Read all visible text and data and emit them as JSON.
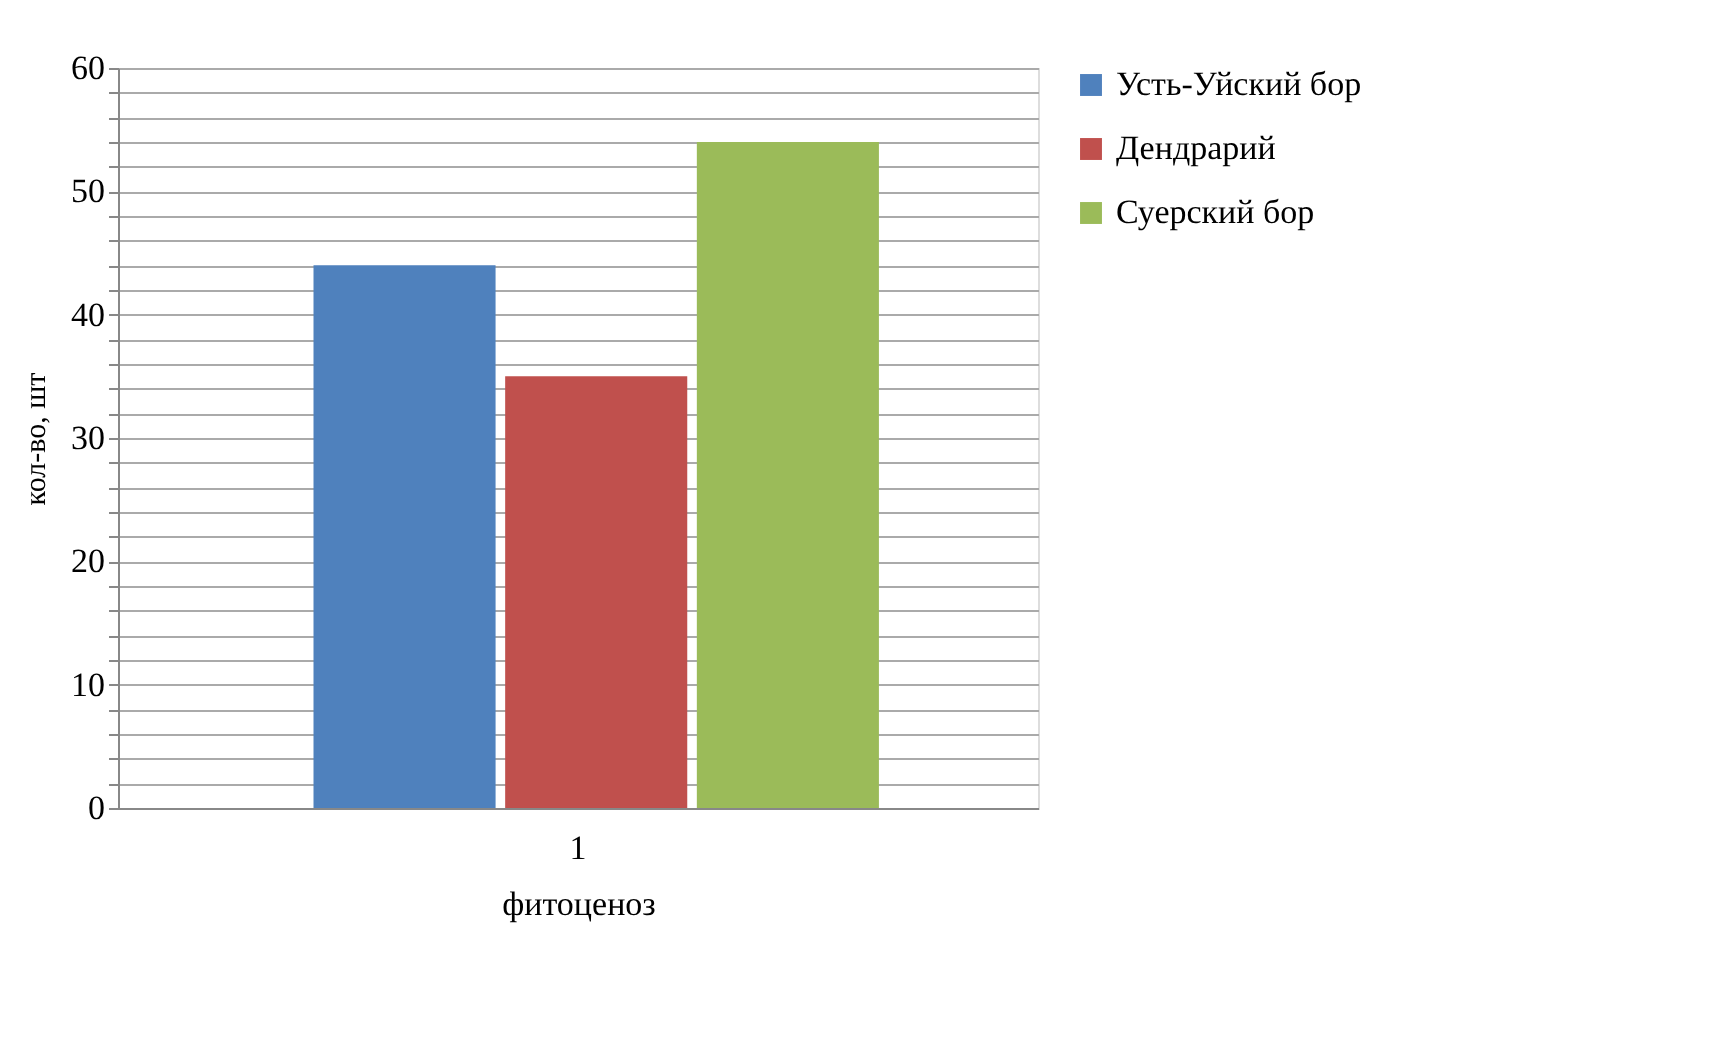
{
  "chart_data": {
    "type": "bar",
    "categories": [
      "1"
    ],
    "xlabel": "фитоценоз",
    "ylabel": "кол-во, шт",
    "series": [
      {
        "name": "Усть-Уйский бор",
        "color": "#4f81bd",
        "values": [
          44
        ]
      },
      {
        "name": "Дендрарий",
        "color": "#c0504d",
        "values": [
          35
        ]
      },
      {
        "name": "Суерский бор",
        "color": "#9bbb59",
        "values": [
          54
        ]
      }
    ],
    "ylim": [
      0,
      60
    ],
    "yticks": [
      0,
      {
        "value": 2,
        "label": null
      },
      {
        "value": 4,
        "label": null
      },
      {
        "value": 6,
        "label": null
      },
      {
        "value": 8,
        "label": null
      },
      10,
      {
        "value": 12,
        "label": null
      },
      {
        "value": 14,
        "label": null
      },
      {
        "value": 16,
        "label": null
      },
      {
        "value": 18,
        "label": null
      },
      20,
      {
        "value": 22,
        "label": null
      },
      {
        "value": 24,
        "label": null
      },
      {
        "value": 26,
        "label": null
      },
      {
        "value": 28,
        "label": null
      },
      30,
      {
        "value": 32,
        "label": null
      },
      {
        "value": 34,
        "label": null
      },
      {
        "value": 36,
        "label": null
      },
      {
        "value": 38,
        "label": null
      },
      40,
      {
        "value": 42,
        "label": null
      },
      {
        "value": 44,
        "label": null
      },
      {
        "value": 46,
        "label": null
      },
      {
        "value": 48,
        "label": null
      },
      50,
      {
        "value": 52,
        "label": null
      },
      {
        "value": 54,
        "label": null
      },
      {
        "value": 56,
        "label": null
      },
      {
        "value": 58,
        "label": null
      },
      60
    ],
    "grid": "y",
    "legend": "right"
  }
}
